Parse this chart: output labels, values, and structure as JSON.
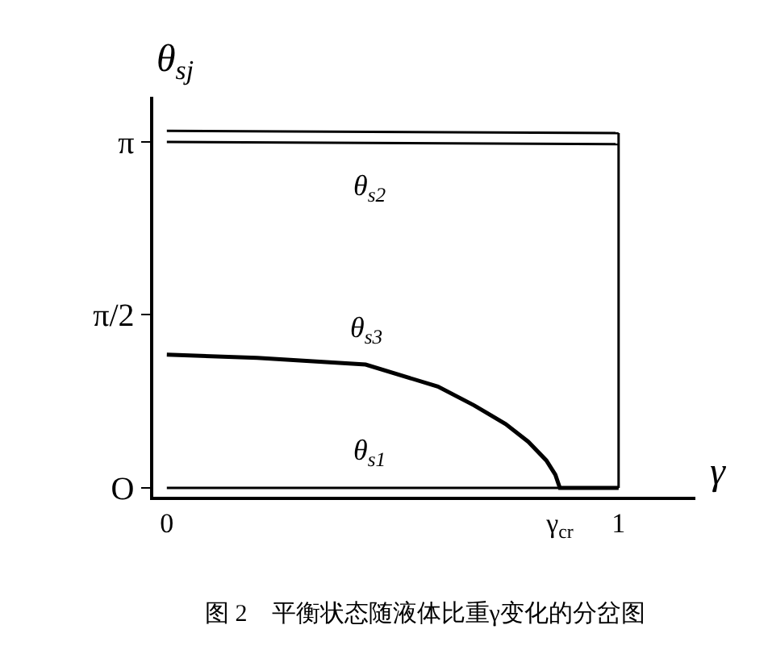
{
  "chart_data": {
    "type": "line",
    "xlabel": "γ",
    "ylabel": "θ$_{sj}$",
    "xlim": [
      -0.03,
      1.17
    ],
    "ylim": [
      -0.08,
      3.55
    ],
    "xticks": [
      0,
      {
        "value": 0.87,
        "label": "γ$_{cr}$"
      },
      1
    ],
    "yticks": [
      {
        "value": 0,
        "label": "O"
      },
      {
        "value": 1.5708,
        "label": "π/2"
      },
      {
        "value": 3.1416,
        "label": "π"
      }
    ],
    "series": [
      {
        "name": "θ$_{s1}$",
        "color": "#000000",
        "x": [
          0,
          1
        ],
        "values": [
          0,
          0
        ]
      },
      {
        "name": "θ$_{s2}$",
        "color": "#000000",
        "x": [
          0,
          1
        ],
        "values": [
          3.14,
          3.12
        ]
      },
      {
        "color": "#000000",
        "x": [
          0,
          1
        ],
        "values": [
          3.24,
          3.22
        ]
      },
      {
        "color": "#000000",
        "x": [
          1,
          1
        ],
        "values": [
          0,
          3.22
        ]
      },
      {
        "name": "θ$_{s3}$",
        "color": "#000000",
        "x": [
          0,
          0.2,
          0.44,
          0.6,
          0.68,
          0.75,
          0.8,
          0.84,
          0.86,
          0.87,
          1
        ],
        "values": [
          1.21,
          1.18,
          1.12,
          0.92,
          0.75,
          0.58,
          0.42,
          0.25,
          0.12,
          0,
          0
        ]
      }
    ],
    "annotations": [
      "图 2　平衡状态随液体比重γ变化的分岔图"
    ],
    "grid": false,
    "legend": false,
    "marker": "none",
    "line_style": "solid"
  }
}
